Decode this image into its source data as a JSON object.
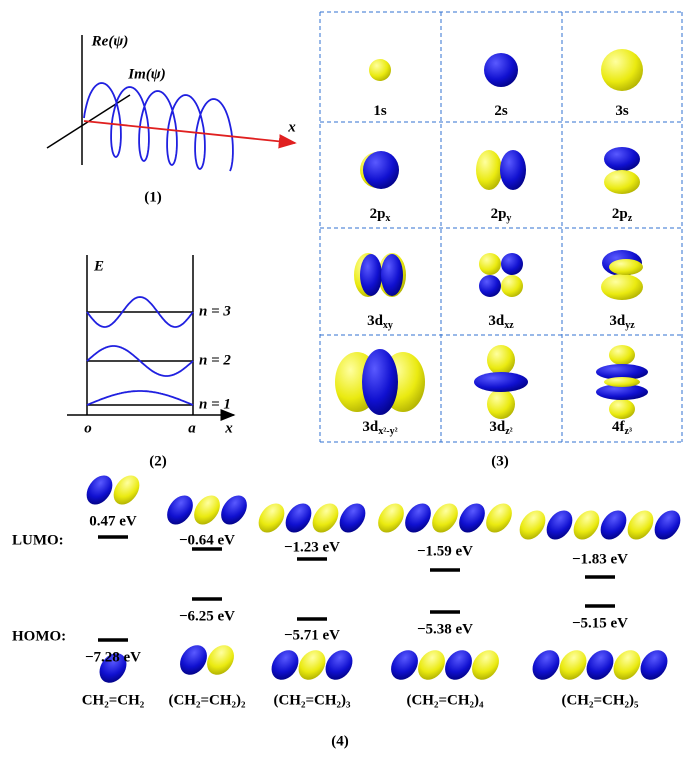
{
  "panel1": {
    "re_label": "Re(ψ)",
    "im_label": "Im(ψ)",
    "axis_label": "x",
    "caption": "(1)"
  },
  "panel2": {
    "energy_label": "E",
    "levels": [
      "n = 3",
      "n = 2",
      "n = 1"
    ],
    "origin": "o",
    "edge": "a",
    "axis_label": "x",
    "caption": "(2)"
  },
  "panel3": {
    "orbitals": [
      {
        "main": "1s"
      },
      {
        "main": "2s"
      },
      {
        "main": "3s"
      },
      {
        "main": "2p",
        "sub": "x"
      },
      {
        "main": "2p",
        "sub": "y"
      },
      {
        "main": "2p",
        "sub": "z"
      },
      {
        "main": "3d",
        "sub": "xy"
      },
      {
        "main": "3d",
        "sub": "xz"
      },
      {
        "main": "3d",
        "sub": "yz"
      },
      {
        "main": "3d",
        "sub": "x²-y²"
      },
      {
        "main": "3d",
        "sub": "z²"
      },
      {
        "main": "4f",
        "sub": "z³"
      }
    ],
    "caption": "(3)"
  },
  "panel4": {
    "lumo_label": "LUMO:",
    "homo_label": "HOMO:",
    "molecules": [
      {
        "lumo": "0.47 eV",
        "homo": "−7.28 eV",
        "formula": "CH₂=CH₂"
      },
      {
        "lumo": "−0.64 eV",
        "homo": "−6.25 eV",
        "formula": "(CH₂=CH₂)₂"
      },
      {
        "lumo": "−1.23 eV",
        "homo": "−5.71 eV",
        "formula": "(CH₂=CH₂)₃"
      },
      {
        "lumo": "−1.59 eV",
        "homo": "−5.38 eV",
        "formula": "(CH₂=CH₂)₄"
      },
      {
        "lumo": "−1.83 eV",
        "homo": "−5.15 eV",
        "formula": "(CH₂=CH₂)₅"
      }
    ],
    "caption": "(4)"
  }
}
